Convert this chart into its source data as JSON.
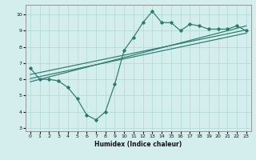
{
  "title": "",
  "xlabel": "Humidex (Indice chaleur)",
  "bg_color": "#d4eeee",
  "line_color": "#2a7a6e",
  "grid_color": "#b8dede",
  "xlim": [
    -0.5,
    23.5
  ],
  "ylim": [
    2.8,
    10.6
  ],
  "yticks": [
    3,
    4,
    5,
    6,
    7,
    8,
    9,
    10
  ],
  "xticks": [
    0,
    1,
    2,
    3,
    4,
    5,
    6,
    7,
    8,
    9,
    10,
    11,
    12,
    13,
    14,
    15,
    16,
    17,
    18,
    19,
    20,
    21,
    22,
    23
  ],
  "series_main": {
    "x": [
      0,
      1,
      2,
      3,
      4,
      5,
      6,
      7,
      8,
      9,
      10,
      11,
      12,
      13,
      14,
      15,
      16,
      17,
      18,
      19,
      20,
      21,
      22,
      23
    ],
    "y": [
      6.7,
      6.0,
      6.0,
      5.9,
      5.5,
      4.8,
      3.8,
      3.5,
      4.0,
      5.7,
      7.8,
      8.6,
      9.5,
      10.2,
      9.5,
      9.5,
      9.0,
      9.4,
      9.3,
      9.1,
      9.1,
      9.1,
      9.3,
      9.0
    ]
  },
  "series_trend1": {
    "x": [
      0,
      23
    ],
    "y": [
      6.3,
      9.05
    ]
  },
  "series_trend2": {
    "x": [
      0,
      23
    ],
    "y": [
      6.05,
      8.85
    ]
  },
  "series_trend3": {
    "x": [
      0,
      23
    ],
    "y": [
      5.85,
      9.3
    ]
  }
}
